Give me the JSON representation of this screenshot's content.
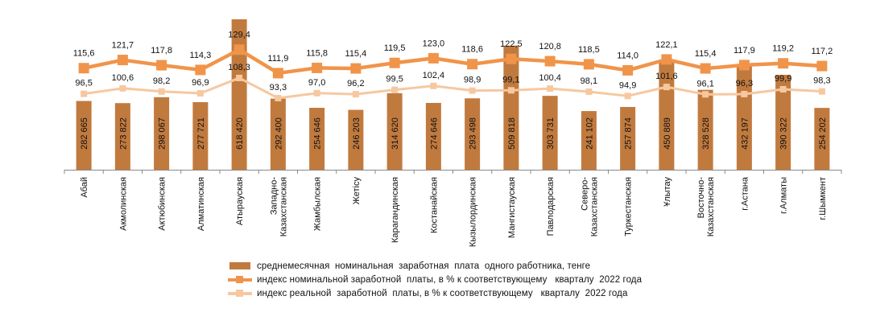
{
  "chart_data": {
    "type": "bar",
    "categories": [
      "Абай",
      "Акмолинская",
      "Актюбинская",
      "Алматинская",
      "Атырауская",
      "Западно-\nКазахстанская",
      "Жамбылская",
      "Жетісу",
      "Карагандинская",
      "Костанайская",
      "Кызылординская",
      "Мангистауская",
      "Павлодарская",
      "Северо-\nКазахстанская",
      "Туркестанская",
      "Ұлытау",
      "Восточно-\nКазахстанская",
      "г.Астана",
      "г.Алматы",
      "г.Шымкент"
    ],
    "series": [
      {
        "name": "среднемесячная  номинальная  заработная  плата  одного работника, тенге",
        "type": "bar",
        "color": "#c17a3e",
        "values": [
          282665,
          273822,
          298067,
          277721,
          618420,
          292400,
          254646,
          246203,
          314620,
          274646,
          293498,
          509818,
          303731,
          241102,
          257874,
          450889,
          328528,
          432197,
          390322,
          254202
        ],
        "labels": [
          "282 665",
          "273 822",
          "298 067",
          "277 721",
          "618 420",
          "292 400",
          "254 646",
          "246 203",
          "314 620",
          "274 646",
          "293 498",
          "509 818",
          "303 731",
          "241 102",
          "257 874",
          "450 889",
          "328 528",
          "432 197",
          "390 322",
          "254 202"
        ]
      },
      {
        "name": "индекс номинальной заработной  платы, в % к соответствующему   кварталу  2022 года",
        "type": "line",
        "color": "#f0944a",
        "values": [
          115.6,
          121.7,
          117.8,
          114.3,
          129.4,
          111.9,
          115.8,
          115.4,
          119.5,
          123.0,
          118.6,
          122.5,
          120.8,
          118.5,
          114.0,
          122.1,
          115.4,
          117.9,
          119.2,
          117.2
        ],
        "labels": [
          "115,6",
          "121,7",
          "117,8",
          "114,3",
          "129,4",
          "111,9",
          "115,8",
          "115,4",
          "119,5",
          "123,0",
          "118,6",
          "122,5",
          "120,8",
          "118,5",
          "114,0",
          "122,1",
          "115,4",
          "117,9",
          "119,2",
          "117,2"
        ]
      },
      {
        "name": "индекс реальной  заработной  платы, в % к соответствующему   кварталу  2022 года",
        "type": "line",
        "color": "#f6c8a0",
        "values": [
          96.5,
          100.6,
          98.2,
          96.9,
          108.3,
          93.3,
          97.0,
          96.2,
          99.5,
          102.4,
          98.9,
          99.1,
          100.4,
          98.1,
          94.9,
          101.6,
          96.1,
          96.3,
          99.9,
          98.3
        ],
        "labels": [
          "96,5",
          "100,6",
          "98,2",
          "96,9",
          "108,3",
          "93,3",
          "97,0",
          "96,2",
          "99,5",
          "102,4",
          "98,9",
          "99,1",
          "100,4",
          "98,1",
          "94,9",
          "101,6",
          "96,1",
          "96,3",
          "99,9",
          "98,3"
        ]
      }
    ],
    "legend_position": "bottom",
    "grid": false
  }
}
